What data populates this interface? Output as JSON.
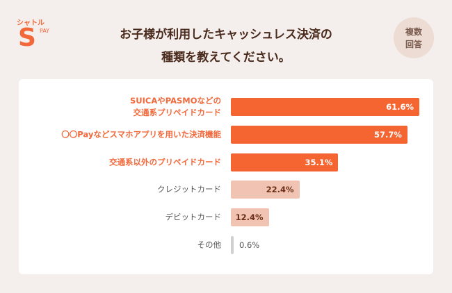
{
  "logo": {
    "top_text": "シャトル",
    "letter": "S",
    "pay": "PAY"
  },
  "title": {
    "line1": "お子様が利用したキャッシュレス決済の",
    "line2": "種類を教えてください。"
  },
  "badge": {
    "line1": "複数",
    "line2": "回答"
  },
  "colors": {
    "high": "#f46532",
    "low": "#f1c3b2",
    "other": "#d0d0d0",
    "background": "#f4efec"
  },
  "chart_data": {
    "type": "bar",
    "orientation": "horizontal",
    "categories": [
      "SUICAやPASMOなどの\n交通系プリペイドカード",
      "〇〇Payなどスマホアプリを用いた決済機能",
      "交通系以外のプリペイドカード",
      "クレジットカード",
      "デビットカード",
      "その他"
    ],
    "category_lines": [
      [
        "SUICAやPASMOなどの",
        "交通系プリペイドカード"
      ],
      [
        "〇〇Payなどスマホアプリを用いた決済機能"
      ],
      [
        "交通系以外のプリペイドカード"
      ],
      [
        "クレジットカード"
      ],
      [
        "デビットカード"
      ],
      [
        "その他"
      ]
    ],
    "values": [
      61.6,
      57.7,
      35.1,
      22.4,
      12.4,
      0.6
    ],
    "value_labels": [
      "61.6%",
      "57.7%",
      "35.1%",
      "22.4%",
      "12.4%",
      "0.6%"
    ],
    "unit": "%",
    "grid": false
  }
}
